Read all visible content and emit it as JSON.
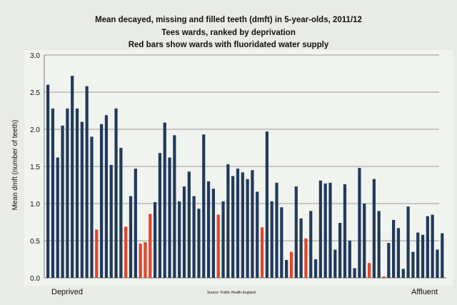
{
  "chart_data": {
    "type": "bar",
    "title": "Mean decayed, missing and filled teeth (dmft) in 5-year-olds,  2011/12",
    "subtitle": [
      "Tees wards, ranked by deprivation",
      "Red bars show wards with fluoridated water supply"
    ],
    "xlabel_left": "Deprived",
    "xlabel_right": "Affluent",
    "ylabel": "Mean dmft (number of teeth)",
    "source": "Source: Public Health England",
    "ylim": [
      0,
      3.0
    ],
    "yticks": [
      "0.0",
      "0.5",
      "1.0",
      "1.5",
      "2.0",
      "2.5",
      "3.0"
    ],
    "grid": true,
    "colors": {
      "non_fluoridated": "#203a5c",
      "fluoridated": "#e2452a"
    },
    "values": [
      2.6,
      2.28,
      1.62,
      2.05,
      2.28,
      2.72,
      2.28,
      2.1,
      2.58,
      1.9,
      0.65,
      2.07,
      2.19,
      1.52,
      2.28,
      1.75,
      0.69,
      1.1,
      1.47,
      0.46,
      0.48,
      0.86,
      1.02,
      1.68,
      2.09,
      1.62,
      1.92,
      1.03,
      1.23,
      1.43,
      1.1,
      0.93,
      1.93,
      1.3,
      1.2,
      0.85,
      1.03,
      1.53,
      1.37,
      1.47,
      1.42,
      1.33,
      1.45,
      1.16,
      0.68,
      1.97,
      1.03,
      1.28,
      0.95,
      0.24,
      0.35,
      1.23,
      0.8,
      0.53,
      0.9,
      0.25,
      1.31,
      1.27,
      1.28,
      0.38,
      0.74,
      1.26,
      0.5,
      0.13,
      1.48,
      1.0,
      0.2,
      1.33,
      0.9,
      0.02,
      0.47,
      0.78,
      0.67,
      0.12,
      0.96,
      0.35,
      0.61,
      0.58,
      0.83,
      0.85,
      0.38,
      0.6
    ],
    "fluoridated": [
      10,
      16,
      19,
      20,
      21,
      35,
      44,
      50,
      53,
      66,
      69
    ]
  }
}
